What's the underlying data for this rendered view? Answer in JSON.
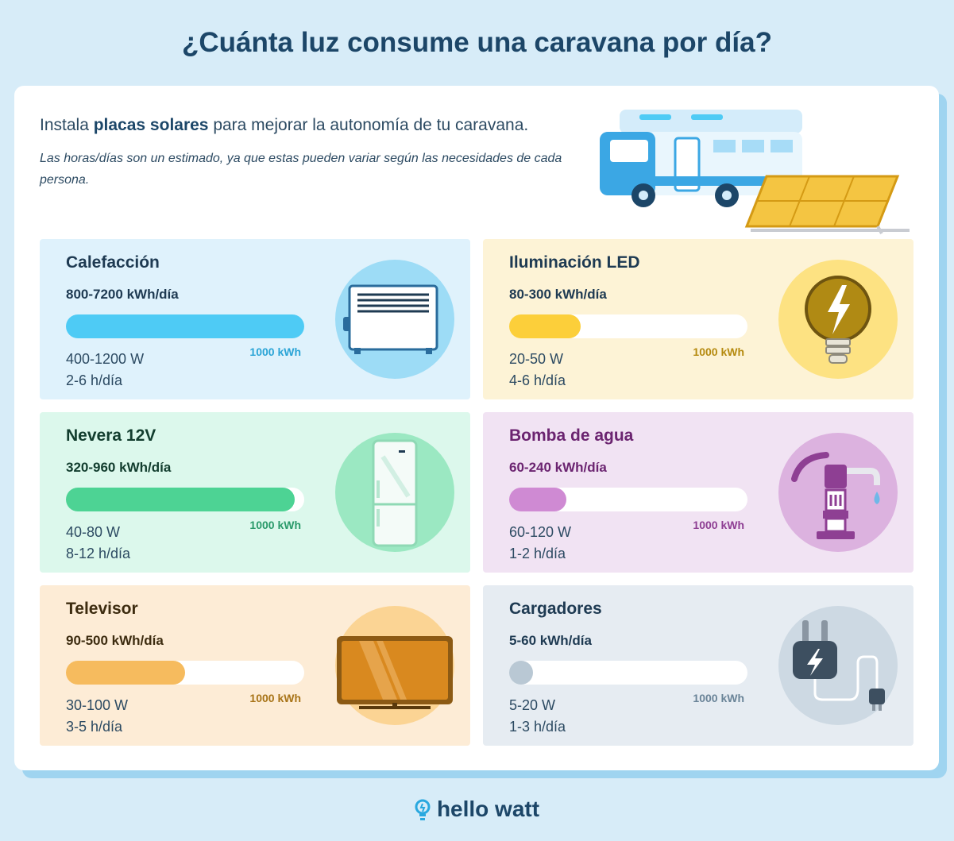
{
  "title": "¿Cuánta luz consume una caravana por día?",
  "intro": {
    "prefix": "Instala ",
    "highlight": "placas solares",
    "suffix": " para mejorar la autonomía de tu caravana."
  },
  "note": "Las horas/días son un estimado, ya que estas pueden variar según las necesidades de cada persona.",
  "cards": [
    {
      "name": "Calefacción",
      "kwh": "800-7200 kWh/día",
      "max": "1000 kWh",
      "watts": "400-1200 W",
      "hours": "2-6 h/día",
      "fill_fraction": 1.0,
      "colors": {
        "bg": "#dff2fc",
        "fill": "#4ecbf5",
        "title": "#1e3a52",
        "accent": "#2aa4d6",
        "circle": "#9ddcf6"
      },
      "icon": "radiator-icon"
    },
    {
      "name": "Iluminación LED",
      "kwh": "80-300 kWh/día",
      "max": "1000 kWh",
      "watts": "20-50 W",
      "hours": "4-6 h/día",
      "fill_fraction": 0.3,
      "colors": {
        "bg": "#fdf3d6",
        "fill": "#fccf3a",
        "title": "#1e3a52",
        "accent": "#b58a0f",
        "circle": "#fde282"
      },
      "icon": "lightbulb-icon"
    },
    {
      "name": "Nevera 12V",
      "kwh": "320-960 kWh/día",
      "max": "1000 kWh",
      "watts": "40-80 W",
      "hours": "8-12 h/día",
      "fill_fraction": 0.96,
      "colors": {
        "bg": "#dcf8ec",
        "fill": "#4dd394",
        "title": "#123d2e",
        "accent": "#2a9a6a",
        "circle": "#9be8c2"
      },
      "icon": "fridge-icon"
    },
    {
      "name": "Bomba de agua",
      "kwh": "60-240 kWh/día",
      "max": "1000 kWh",
      "watts": "60-120 W",
      "hours": "1-2 h/día",
      "fill_fraction": 0.24,
      "colors": {
        "bg": "#f1e3f3",
        "fill": "#cf8ad3",
        "title": "#6b2470",
        "accent": "#8e3f93",
        "circle": "#dcb2df"
      },
      "icon": "water-pump-icon"
    },
    {
      "name": "Televisor",
      "kwh": "90-500 kWh/día",
      "max": "1000 kWh",
      "watts": "30-100 W",
      "hours": "3-5 h/día",
      "fill_fraction": 0.5,
      "colors": {
        "bg": "#fdecd6",
        "fill": "#f6bb5e",
        "title": "#3d2c10",
        "accent": "#a87418",
        "circle": "#fbd494"
      },
      "icon": "television-icon"
    },
    {
      "name": "Cargadores",
      "kwh": "5-60 kWh/día",
      "max": "1000 kWh",
      "watts": "5-20 W",
      "hours": "1-3 h/día",
      "fill_fraction": 0.06,
      "colors": {
        "bg": "#e6ecf2",
        "fill": "#b9c8d4",
        "title": "#1e3a52",
        "accent": "#6a8498",
        "circle": "#cdd9e3"
      },
      "icon": "plug-icon"
    }
  ],
  "brand": "hello watt"
}
